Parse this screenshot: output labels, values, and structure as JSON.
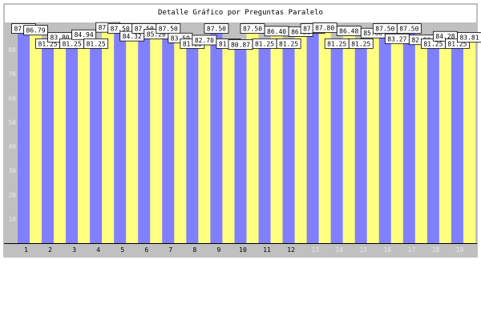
{
  "chart_data": {
    "type": "bar",
    "title": "Detalle Gráfico por Preguntas Paralelo",
    "categories": [
      "1",
      "2",
      "3",
      "4",
      "5",
      "6",
      "7",
      "8",
      "9",
      "10",
      "11",
      "12",
      "13",
      "14",
      "15",
      "16",
      "17",
      "18",
      "19"
    ],
    "series": [
      {
        "values": [
          87.5,
          81.25,
          81.25,
          81.25,
          87.5,
          87.5,
          87.5,
          81.25,
          87.5,
          80.87,
          81.25,
          81.25,
          87.5,
          81.25,
          81.25,
          87.5,
          87.5,
          81.25,
          81.25
        ]
      },
      {
        "values": [
          86.79,
          83.8,
          84.94,
          87.96,
          84.32,
          85.2,
          83.59,
          82.7,
          81.22,
          87.5,
          86.4,
          86.21,
          87.8,
          86.48,
          85.6,
          83.27,
          82.8,
          84.28,
          83.81
        ]
      }
    ],
    "ylim": [
      0,
      90
    ],
    "yticks": [
      "10",
      "20",
      "30",
      "40",
      "50",
      "60",
      "70",
      "80"
    ],
    "grid": false,
    "colors": {
      "series1": "#8080ff",
      "series2": "#ffff80",
      "plot_bg": "#c0c0c0",
      "frame": "#808080",
      "label_bg": "#ffffff",
      "tick_light": "#eaeaea"
    }
  }
}
